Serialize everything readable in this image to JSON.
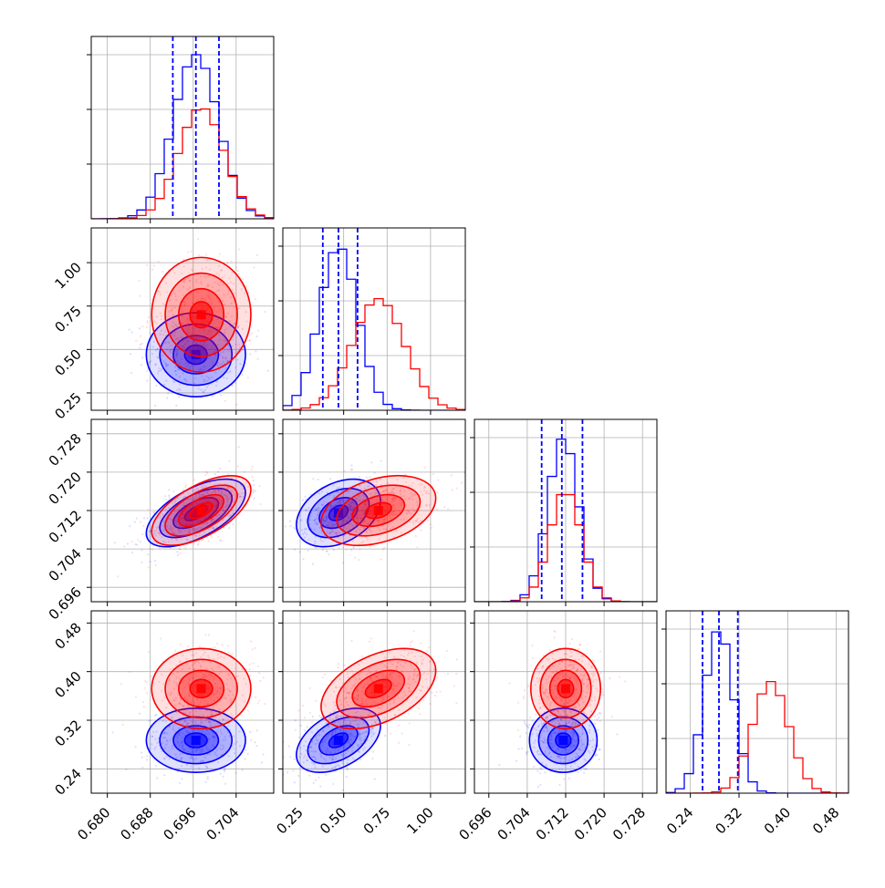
{
  "chart_data": {
    "type": "corner",
    "colors": {
      "series_a": "#0000ff",
      "series_b": "#ff0000",
      "grid": "#b0b0b0"
    },
    "grid": true,
    "parameters": [
      {
        "range": [
          0.677,
          0.711
        ],
        "ticks": [
          "0.680",
          "0.688",
          "0.696",
          "0.704"
        ]
      },
      {
        "range": [
          0.15,
          1.2
        ],
        "ticks": [
          "0.25",
          "0.50",
          "0.75",
          "1.00"
        ]
      },
      {
        "range": [
          0.693,
          0.731
        ],
        "ticks": [
          "0.696",
          "0.704",
          "0.712",
          "0.720",
          "0.728"
        ]
      },
      {
        "range": [
          0.2,
          0.5
        ],
        "ticks": [
          "0.24",
          "0.32",
          "0.40",
          "0.48"
        ]
      }
    ],
    "series": [
      {
        "color": "#0000ff",
        "means": [
          0.6965,
          0.47,
          0.7115,
          0.287
        ],
        "sigmas": [
          0.0042,
          0.11,
          0.0032,
          0.024
        ],
        "quantiles": [
          [
            0.6922,
            0.6965,
            0.7008
          ],
          [
            0.38,
            0.47,
            0.58
          ],
          [
            0.707,
            0.7112,
            0.7155
          ],
          [
            0.26,
            0.287,
            0.318
          ]
        ],
        "hist_peak_frac": 1.0
      },
      {
        "color": "#ff0000",
        "means": [
          0.6975,
          0.7,
          0.712,
          0.372
        ],
        "sigmas": [
          0.0042,
          0.15,
          0.0033,
          0.03
        ],
        "hist_peak_frac": 0.68
      }
    ],
    "correlations": {
      "0-1": 0.0,
      "0-2": 0.6,
      "0-3": 0.0,
      "1-2": 0.35,
      "1-3": 0.45,
      "2-3": 0.0
    }
  }
}
